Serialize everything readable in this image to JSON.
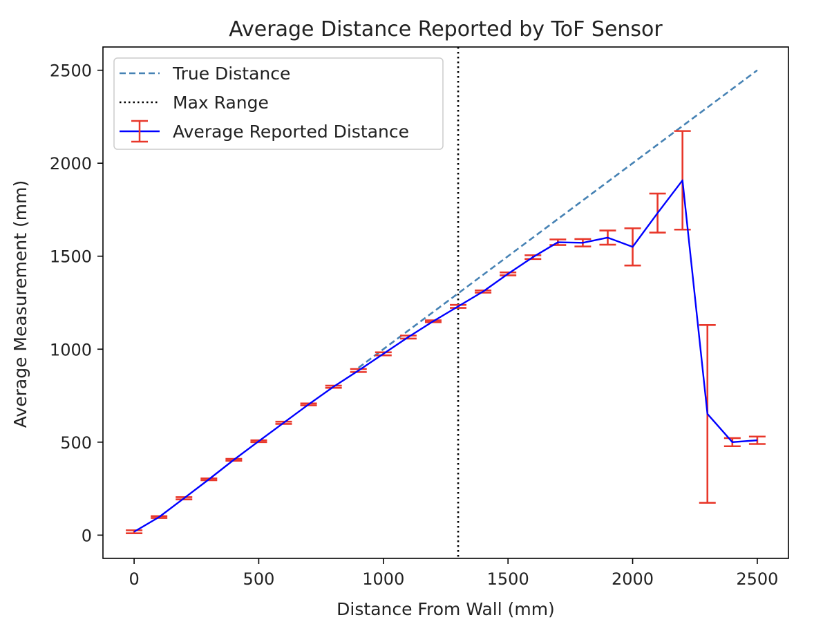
{
  "chart_data": {
    "type": "line",
    "title": "Average Distance Reported by ToF Sensor",
    "xlabel": "Distance From Wall (mm)",
    "ylabel": "Average Measurement (mm)",
    "xlim": [
      -125,
      2625
    ],
    "ylim": [
      -125,
      2625
    ],
    "xticks": [
      0,
      500,
      1000,
      1500,
      2000,
      2500
    ],
    "yticks": [
      0,
      500,
      1000,
      1500,
      2000,
      2500
    ],
    "grid": false,
    "legend_position": "upper-left",
    "series": [
      {
        "name": "True Distance",
        "style": "dashed",
        "color": "#4682b4",
        "x": [
          900,
          2500
        ],
        "y": [
          900,
          2500
        ]
      },
      {
        "name": "Max Range",
        "style": "dotted-vertical",
        "color": "#000000",
        "x": [
          1300,
          1300
        ],
        "y": [
          -125,
          2625
        ]
      },
      {
        "name": "Average Reported Distance",
        "style": "solid-errorbar",
        "color": "#0000ff",
        "errorbar_color": "#e8372a",
        "x": [
          0,
          100,
          200,
          300,
          400,
          500,
          600,
          700,
          800,
          900,
          1000,
          1100,
          1200,
          1300,
          1400,
          1500,
          1600,
          1700,
          1800,
          1900,
          2000,
          2100,
          2200,
          2300,
          2400,
          2500
        ],
        "y": [
          18,
          97,
          198,
          300,
          405,
          505,
          604,
          703,
          798,
          885,
          975,
          1065,
          1150,
          1230,
          1310,
          1405,
          1495,
          1575,
          1572,
          1600,
          1550,
          1732,
          1908,
          652,
          500,
          510
        ],
        "error": [
          8,
          5,
          6,
          5,
          5,
          5,
          6,
          5,
          6,
          8,
          8,
          8,
          5,
          8,
          6,
          8,
          10,
          15,
          20,
          38,
          100,
          105,
          265,
          478,
          22,
          20
        ]
      }
    ]
  }
}
